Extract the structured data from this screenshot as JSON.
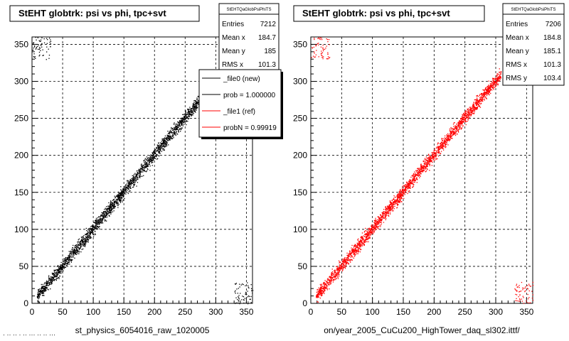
{
  "chart_data": [
    {
      "type": "scatter",
      "title": "StEHT globtrk: psi vs phi, tpc+svt",
      "xlabel": "st_physics_6054016_raw_1020005",
      "ylabel": "",
      "xlim": [
        0,
        360
      ],
      "ylim": [
        0,
        360
      ],
      "xticks": [
        0,
        50,
        100,
        150,
        200,
        250,
        300,
        350
      ],
      "yticks": [
        0,
        50,
        100,
        150,
        200,
        250,
        300,
        350
      ],
      "grid": true,
      "marker_color": "#000000",
      "series": [
        {
          "name": "_file0 (new)",
          "pattern": "diagonal psi ≈ phi band, sparse corners",
          "x": [
            10,
            50,
            100,
            150,
            200,
            250,
            300
          ],
          "y": [
            10,
            50,
            100,
            150,
            200,
            250,
            300
          ]
        }
      ],
      "stats": {
        "header": "StEHTQaGlobPsiPhiTS",
        "rows": [
          {
            "label": "Entries",
            "value": "7212"
          },
          {
            "label": "Mean x",
            "value": "184.7"
          },
          {
            "label": "Mean y",
            "value": "185"
          },
          {
            "label": "RMS x",
            "value": "101.3"
          }
        ]
      },
      "legend": {
        "position": "top-right",
        "items": [
          {
            "label": "_file0 (new)",
            "color": "#000000"
          },
          {
            "label": "prob = 1.000000",
            "color": "#000000"
          },
          {
            "label": "_file1 (ref)",
            "color": "#ff0000"
          },
          {
            "label": "probN = 0.99919",
            "color": "#ff0000"
          }
        ]
      }
    },
    {
      "type": "scatter",
      "title": "StEHT globtrk: psi vs phi, tpc+svt",
      "xlabel": "on/year_2005_CuCu200_HighTower_daq_sl302.ittf/",
      "ylabel": "",
      "xlim": [
        0,
        360
      ],
      "ylim": [
        0,
        360
      ],
      "xticks": [
        0,
        50,
        100,
        150,
        200,
        250,
        300,
        350
      ],
      "yticks": [
        0,
        50,
        100,
        150,
        200,
        250,
        300,
        350
      ],
      "grid": true,
      "marker_color": "#ff0000",
      "series": [
        {
          "name": "_file1 (ref)",
          "pattern": "diagonal psi ≈ phi band, sparse corners",
          "x": [
            10,
            50,
            100,
            150,
            200,
            250,
            300
          ],
          "y": [
            10,
            50,
            100,
            150,
            200,
            250,
            300
          ]
        }
      ],
      "stats": {
        "header": "StEHTQaGlobPsiPhiTS",
        "rows": [
          {
            "label": "Entries",
            "value": "7206"
          },
          {
            "label": "Mean x",
            "value": "184.8"
          },
          {
            "label": "Mean y",
            "value": "185.1"
          },
          {
            "label": "RMS x",
            "value": "101.3"
          },
          {
            "label": "RMS y",
            "value": "103.4"
          }
        ]
      }
    }
  ],
  "footer": "· ·· ·· · ·· ··· ·· ·· ···"
}
